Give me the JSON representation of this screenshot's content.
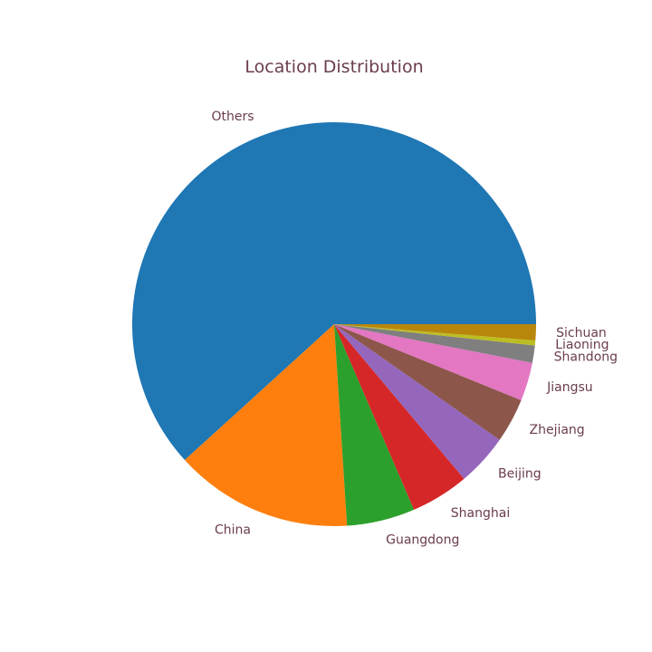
{
  "chart_data": {
    "type": "pie",
    "title": "Location Distribution",
    "start_angle_deg": 0,
    "direction": "counterclockwise",
    "slices": [
      {
        "label": "Others",
        "value": 62.3,
        "color": "#1f77b4"
      },
      {
        "label": "China",
        "value": 14.4,
        "color": "#ff7f0e"
      },
      {
        "label": "Guangdong",
        "value": 5.5,
        "color": "#2ca02c"
      },
      {
        "label": "Shanghai",
        "value": 4.7,
        "color": "#d62728"
      },
      {
        "label": "Beijing",
        "value": 4.2,
        "color": "#9467bd"
      },
      {
        "label": "Zhejiang",
        "value": 3.6,
        "color": "#8c564b"
      },
      {
        "label": "Jiangsu",
        "value": 3.1,
        "color": "#e377c2"
      },
      {
        "label": "Shandong",
        "value": 1.4,
        "color": "#7f7f7f"
      },
      {
        "label": "Liaoning",
        "value": 0.4,
        "color": "#bcbd22"
      },
      {
        "label": "Sichuan",
        "value": 1.3,
        "color": "#b8860b"
      }
    ]
  }
}
